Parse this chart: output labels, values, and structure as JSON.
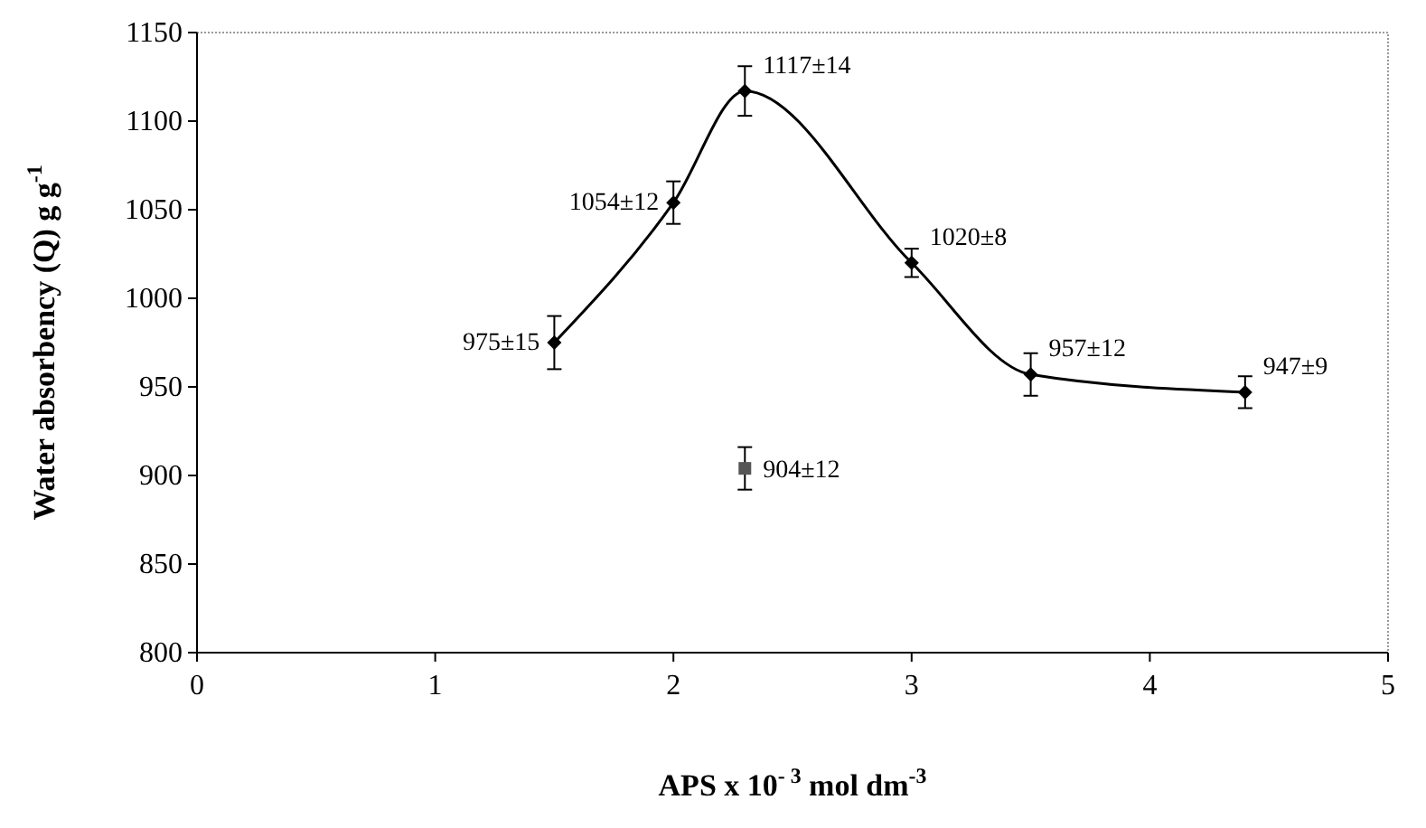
{
  "chart_data": {
    "type": "line",
    "xlabel": "APS x 10$^{- 3}$ mol dm$^{-3}$",
    "ylabel": "Water absorbency (Q) g g$^{-1}$",
    "xlim": [
      0,
      5
    ],
    "xticks": [
      0,
      1,
      2,
      3,
      4,
      5
    ],
    "ylim": [
      800,
      1150
    ],
    "yticks": [
      800,
      850,
      900,
      950,
      1000,
      1050,
      1100,
      1150
    ],
    "grid": false,
    "series": [
      {
        "color": "#000000",
        "marker": "diamond",
        "x": [
          1.5,
          2,
          2.3,
          3,
          3.5,
          4.4
        ],
        "values": [
          975,
          1054,
          1117,
          1020,
          957,
          947
        ],
        "errors": [
          15,
          12,
          14,
          8,
          12,
          9
        ],
        "value_labels": [
          "975±15",
          "1054±12",
          "1117±14",
          "1020±8",
          "957±12",
          "947±9"
        ]
      },
      {
        "type": "scatter",
        "color": "#555555",
        "marker": "square",
        "x": [
          2.3
        ],
        "values": [
          904
        ],
        "errors": [
          12
        ],
        "value_labels": [
          "904±12"
        ]
      }
    ]
  }
}
